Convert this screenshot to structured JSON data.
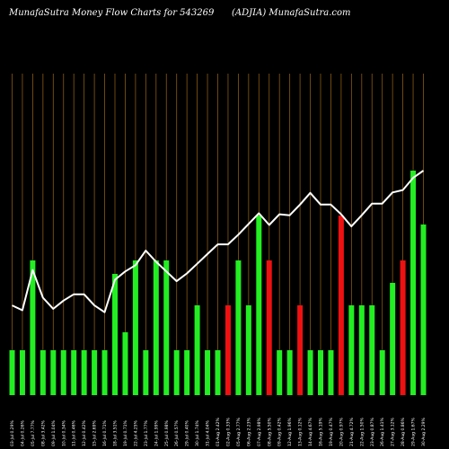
{
  "header": {
    "left": "MunafaSutra  Money Flow  Charts for 543269",
    "right": "(ADJIA) MunafaSutra.com"
  },
  "colors": {
    "background": "#000000",
    "gridline": "#8a5a12",
    "up_bar": "#22ee22",
    "down_bar": "#ee1111",
    "price_line": "#ffffff"
  },
  "chart_data": {
    "type": "bar",
    "title": "",
    "grid": true,
    "categories": [
      "03-Jul-2024",
      "04-Jul-2024",
      "05-Jul-2024",
      "08-Jul-2024",
      "09-Jul-2024",
      "10-Jul-2024",
      "11-Jul-2024",
      "12-Jul-2024",
      "15-Jul-2024",
      "16-Jul-2024",
      "18-Jul-2024",
      "19-Jul-2024",
      "22-Jul-2024",
      "23-Jul-2024",
      "24-Jul-2024",
      "25-Jul-2024",
      "26-Jul-2024",
      "29-Jul-2024",
      "30-Jul-2024",
      "31-Jul-2024",
      "01-Aug-2024",
      "02-Aug-2024",
      "05-Aug-2024",
      "06-Aug-2024",
      "07-Aug-2024",
      "08-Aug-2024",
      "09-Aug-2024",
      "12-Aug-2024",
      "13-Aug-2024",
      "14-Aug-2024",
      "16-Aug-2024",
      "19-Aug-2024",
      "20-Aug-2024",
      "21-Aug-2024",
      "22-Aug-2024",
      "23-Aug-2024",
      "26-Aug-2024",
      "27-Aug-2024",
      "28-Aug-2024",
      "29-Aug-2024",
      "30-Aug-2024"
    ],
    "tick_labels": [
      "03-Jul 0.29%",
      "04-Jul 0.26%",
      "05-Jul 7.77%",
      "08-Jul 3.42%",
      "09-Jul 1.04%",
      "10-Jul 0.34%",
      "11-Jul 0.46%",
      "12-Jul 0.42%",
      "15-Jul 2.69%",
      "16-Jul 0.71%",
      "18-Jul 3.51%",
      "19-Jul 0.71%",
      "22-Jul 4.25%",
      "23-Jul 1.77%",
      "24-Jul 1.99%",
      "25-Jul 0.98%",
      "26-Jul 0.57%",
      "29-Jul 0.40%",
      "30-Jul 1.74%",
      "31-Jul 4.04%",
      "01-Aug 2.42%",
      "02-Aug 0.33%",
      "05-Aug 2.77%",
      "06-Aug 2.23%",
      "07-Aug 2.98%",
      "08-Aug 5.50%",
      "09-Aug 0.42%",
      "12-Aug 1.96%",
      "13-Aug 0.12%",
      "14-Aug 4.67%",
      "16-Aug 5.19%",
      "19-Aug 0.47%",
      "20-Aug 0.97%",
      "21-Aug 4.72%",
      "22-Aug 1.50%",
      "23-Aug 0.87%",
      "26-Aug 1.41%",
      "27-Aug 3.12%",
      "28-Aug 0.86%",
      "29-Aug 1.67%",
      "30-Aug 2.29%"
    ],
    "series": [
      {
        "kind": "money_flow_bars",
        "values": [
          1,
          1,
          3,
          1,
          1,
          1,
          1,
          1,
          1,
          1,
          2.7,
          1.4,
          3,
          1,
          3,
          3,
          1,
          1,
          2,
          1,
          1,
          2,
          3,
          2,
          4,
          3,
          1,
          1,
          2,
          1,
          1,
          1,
          4,
          2,
          2,
          2,
          1,
          2.5,
          3,
          5,
          3.8
        ],
        "direction": [
          "up",
          "up",
          "up",
          "up",
          "up",
          "up",
          "up",
          "up",
          "up",
          "up",
          "up",
          "up",
          "up",
          "up",
          "up",
          "up",
          "up",
          "up",
          "up",
          "up",
          "up",
          "down",
          "up",
          "up",
          "up",
          "down",
          "up",
          "up",
          "down",
          "up",
          "up",
          "up",
          "down",
          "up",
          "up",
          "up",
          "up",
          "up",
          "down",
          "up",
          "up"
        ]
      },
      {
        "kind": "price_line",
        "values": [
          2.72,
          2.62,
          3.45,
          2.88,
          2.65,
          2.82,
          2.95,
          2.95,
          2.72,
          2.58,
          3.25,
          3.42,
          3.55,
          3.85,
          3.62,
          3.42,
          3.22,
          3.38,
          3.58,
          3.78,
          3.98,
          3.98,
          4.18,
          4.4,
          4.62,
          4.38,
          4.6,
          4.58,
          4.8,
          5.04,
          4.8,
          4.8,
          4.6,
          4.35,
          4.58,
          4.82,
          4.82,
          5.05,
          5.1,
          5.35,
          5.5
        ]
      }
    ],
    "ylim": [
      0,
      6
    ]
  }
}
